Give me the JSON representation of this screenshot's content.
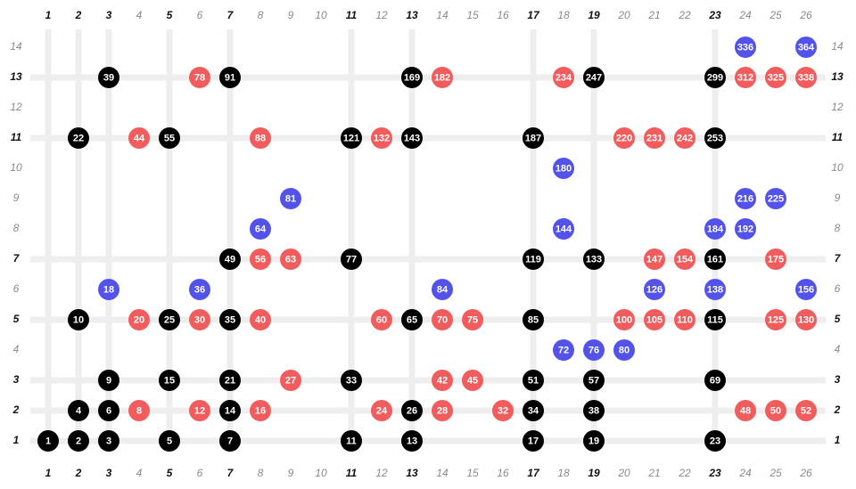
{
  "diagram": {
    "columns": {
      "labels": [
        "1",
        "2",
        "3",
        "4",
        "5",
        "6",
        "7",
        "8",
        "9",
        "10",
        "11",
        "12",
        "13",
        "14",
        "15",
        "16",
        "17",
        "18",
        "19",
        "20",
        "21",
        "22",
        "23",
        "24",
        "25",
        "26"
      ],
      "bold": [
        1,
        2,
        3,
        5,
        7,
        11,
        13,
        17,
        19,
        23
      ]
    },
    "rows": {
      "labels": [
        "1",
        "2",
        "3",
        "4",
        "5",
        "6",
        "7",
        "8",
        "9",
        "10",
        "11",
        "12",
        "13",
        "14"
      ],
      "bold": [
        1,
        2,
        3,
        5,
        7,
        11,
        13
      ]
    },
    "colors": {
      "black": "#000000",
      "red": "#f25c5c",
      "blue": "#5353ec",
      "line": "#eeeeee"
    },
    "dots": [
      {
        "text": "1",
        "col": 1,
        "row": 1,
        "color": "black"
      },
      {
        "text": "2",
        "col": 2,
        "row": 1,
        "color": "black"
      },
      {
        "text": "3",
        "col": 3,
        "row": 1,
        "color": "black"
      },
      {
        "text": "5",
        "col": 5,
        "row": 1,
        "color": "black"
      },
      {
        "text": "7",
        "col": 7,
        "row": 1,
        "color": "black"
      },
      {
        "text": "11",
        "col": 11,
        "row": 1,
        "color": "black"
      },
      {
        "text": "13",
        "col": 13,
        "row": 1,
        "color": "black"
      },
      {
        "text": "17",
        "col": 17,
        "row": 1,
        "color": "black"
      },
      {
        "text": "19",
        "col": 19,
        "row": 1,
        "color": "black"
      },
      {
        "text": "23",
        "col": 23,
        "row": 1,
        "color": "black"
      },
      {
        "text": "4",
        "col": 2,
        "row": 2,
        "color": "black"
      },
      {
        "text": "6",
        "col": 3,
        "row": 2,
        "color": "black"
      },
      {
        "text": "8",
        "col": 4,
        "row": 2,
        "color": "red"
      },
      {
        "text": "12",
        "col": 6,
        "row": 2,
        "color": "red"
      },
      {
        "text": "14",
        "col": 7,
        "row": 2,
        "color": "black"
      },
      {
        "text": "16",
        "col": 8,
        "row": 2,
        "color": "red"
      },
      {
        "text": "24",
        "col": 12,
        "row": 2,
        "color": "red"
      },
      {
        "text": "26",
        "col": 13,
        "row": 2,
        "color": "black"
      },
      {
        "text": "28",
        "col": 14,
        "row": 2,
        "color": "red"
      },
      {
        "text": "32",
        "col": 16,
        "row": 2,
        "color": "red"
      },
      {
        "text": "34",
        "col": 17,
        "row": 2,
        "color": "black"
      },
      {
        "text": "38",
        "col": 19,
        "row": 2,
        "color": "black"
      },
      {
        "text": "48",
        "col": 24,
        "row": 2,
        "color": "red"
      },
      {
        "text": "50",
        "col": 25,
        "row": 2,
        "color": "red"
      },
      {
        "text": "52",
        "col": 26,
        "row": 2,
        "color": "red"
      },
      {
        "text": "9",
        "col": 3,
        "row": 3,
        "color": "black"
      },
      {
        "text": "15",
        "col": 5,
        "row": 3,
        "color": "black"
      },
      {
        "text": "21",
        "col": 7,
        "row": 3,
        "color": "black"
      },
      {
        "text": "27",
        "col": 9,
        "row": 3,
        "color": "red"
      },
      {
        "text": "33",
        "col": 11,
        "row": 3,
        "color": "black"
      },
      {
        "text": "42",
        "col": 14,
        "row": 3,
        "color": "red"
      },
      {
        "text": "45",
        "col": 15,
        "row": 3,
        "color": "red"
      },
      {
        "text": "51",
        "col": 17,
        "row": 3,
        "color": "black"
      },
      {
        "text": "57",
        "col": 19,
        "row": 3,
        "color": "black"
      },
      {
        "text": "69",
        "col": 23,
        "row": 3,
        "color": "black"
      },
      {
        "text": "72",
        "col": 18,
        "row": 4,
        "color": "blue"
      },
      {
        "text": "76",
        "col": 19,
        "row": 4,
        "color": "blue"
      },
      {
        "text": "80",
        "col": 20,
        "row": 4,
        "color": "blue"
      },
      {
        "text": "10",
        "col": 2,
        "row": 5,
        "color": "black"
      },
      {
        "text": "20",
        "col": 4,
        "row": 5,
        "color": "red"
      },
      {
        "text": "25",
        "col": 5,
        "row": 5,
        "color": "black"
      },
      {
        "text": "30",
        "col": 6,
        "row": 5,
        "color": "red"
      },
      {
        "text": "35",
        "col": 7,
        "row": 5,
        "color": "black"
      },
      {
        "text": "40",
        "col": 8,
        "row": 5,
        "color": "red"
      },
      {
        "text": "60",
        "col": 12,
        "row": 5,
        "color": "red"
      },
      {
        "text": "65",
        "col": 13,
        "row": 5,
        "color": "black"
      },
      {
        "text": "70",
        "col": 14,
        "row": 5,
        "color": "red"
      },
      {
        "text": "75",
        "col": 15,
        "row": 5,
        "color": "red"
      },
      {
        "text": "85",
        "col": 17,
        "row": 5,
        "color": "black"
      },
      {
        "text": "100",
        "col": 20,
        "row": 5,
        "color": "red"
      },
      {
        "text": "105",
        "col": 21,
        "row": 5,
        "color": "red"
      },
      {
        "text": "110",
        "col": 22,
        "row": 5,
        "color": "red"
      },
      {
        "text": "115",
        "col": 23,
        "row": 5,
        "color": "black"
      },
      {
        "text": "125",
        "col": 25,
        "row": 5,
        "color": "red"
      },
      {
        "text": "130",
        "col": 26,
        "row": 5,
        "color": "red"
      },
      {
        "text": "18",
        "col": 3,
        "row": 6,
        "color": "blue"
      },
      {
        "text": "36",
        "col": 6,
        "row": 6,
        "color": "blue"
      },
      {
        "text": "84",
        "col": 14,
        "row": 6,
        "color": "blue"
      },
      {
        "text": "126",
        "col": 21,
        "row": 6,
        "color": "blue"
      },
      {
        "text": "138",
        "col": 23,
        "row": 6,
        "color": "blue"
      },
      {
        "text": "156",
        "col": 26,
        "row": 6,
        "color": "blue"
      },
      {
        "text": "49",
        "col": 7,
        "row": 7,
        "color": "black"
      },
      {
        "text": "56",
        "col": 8,
        "row": 7,
        "color": "red"
      },
      {
        "text": "63",
        "col": 9,
        "row": 7,
        "color": "red"
      },
      {
        "text": "77",
        "col": 11,
        "row": 7,
        "color": "black"
      },
      {
        "text": "119",
        "col": 17,
        "row": 7,
        "color": "black"
      },
      {
        "text": "133",
        "col": 19,
        "row": 7,
        "color": "black"
      },
      {
        "text": "147",
        "col": 21,
        "row": 7,
        "color": "red"
      },
      {
        "text": "154",
        "col": 22,
        "row": 7,
        "color": "red"
      },
      {
        "text": "161",
        "col": 23,
        "row": 7,
        "color": "black"
      },
      {
        "text": "175",
        "col": 25,
        "row": 7,
        "color": "red"
      },
      {
        "text": "64",
        "col": 8,
        "row": 8,
        "color": "blue"
      },
      {
        "text": "144",
        "col": 18,
        "row": 8,
        "color": "blue"
      },
      {
        "text": "184",
        "col": 23,
        "row": 8,
        "color": "blue"
      },
      {
        "text": "192",
        "col": 24,
        "row": 8,
        "color": "blue"
      },
      {
        "text": "81",
        "col": 9,
        "row": 9,
        "color": "blue"
      },
      {
        "text": "216",
        "col": 24,
        "row": 9,
        "color": "blue"
      },
      {
        "text": "225",
        "col": 25,
        "row": 9,
        "color": "blue"
      },
      {
        "text": "180",
        "col": 18,
        "row": 10,
        "color": "blue"
      },
      {
        "text": "22",
        "col": 2,
        "row": 11,
        "color": "black"
      },
      {
        "text": "44",
        "col": 4,
        "row": 11,
        "color": "red"
      },
      {
        "text": "55",
        "col": 5,
        "row": 11,
        "color": "black"
      },
      {
        "text": "88",
        "col": 8,
        "row": 11,
        "color": "red"
      },
      {
        "text": "121",
        "col": 11,
        "row": 11,
        "color": "black"
      },
      {
        "text": "132",
        "col": 12,
        "row": 11,
        "color": "red"
      },
      {
        "text": "143",
        "col": 13,
        "row": 11,
        "color": "black"
      },
      {
        "text": "187",
        "col": 17,
        "row": 11,
        "color": "black"
      },
      {
        "text": "220",
        "col": 20,
        "row": 11,
        "color": "red"
      },
      {
        "text": "231",
        "col": 21,
        "row": 11,
        "color": "red"
      },
      {
        "text": "242",
        "col": 22,
        "row": 11,
        "color": "red"
      },
      {
        "text": "253",
        "col": 23,
        "row": 11,
        "color": "black"
      },
      {
        "text": "39",
        "col": 3,
        "row": 13,
        "color": "black"
      },
      {
        "text": "78",
        "col": 6,
        "row": 13,
        "color": "red"
      },
      {
        "text": "91",
        "col": 7,
        "row": 13,
        "color": "black"
      },
      {
        "text": "169",
        "col": 13,
        "row": 13,
        "color": "black"
      },
      {
        "text": "182",
        "col": 14,
        "row": 13,
        "color": "red"
      },
      {
        "text": "234",
        "col": 18,
        "row": 13,
        "color": "red"
      },
      {
        "text": "247",
        "col": 19,
        "row": 13,
        "color": "black"
      },
      {
        "text": "299",
        "col": 23,
        "row": 13,
        "color": "black"
      },
      {
        "text": "312",
        "col": 24,
        "row": 13,
        "color": "red"
      },
      {
        "text": "325",
        "col": 25,
        "row": 13,
        "color": "red"
      },
      {
        "text": "338",
        "col": 26,
        "row": 13,
        "color": "red"
      },
      {
        "text": "336",
        "col": 24,
        "row": 14,
        "color": "blue"
      },
      {
        "text": "364",
        "col": 26,
        "row": 14,
        "color": "blue"
      }
    ]
  }
}
